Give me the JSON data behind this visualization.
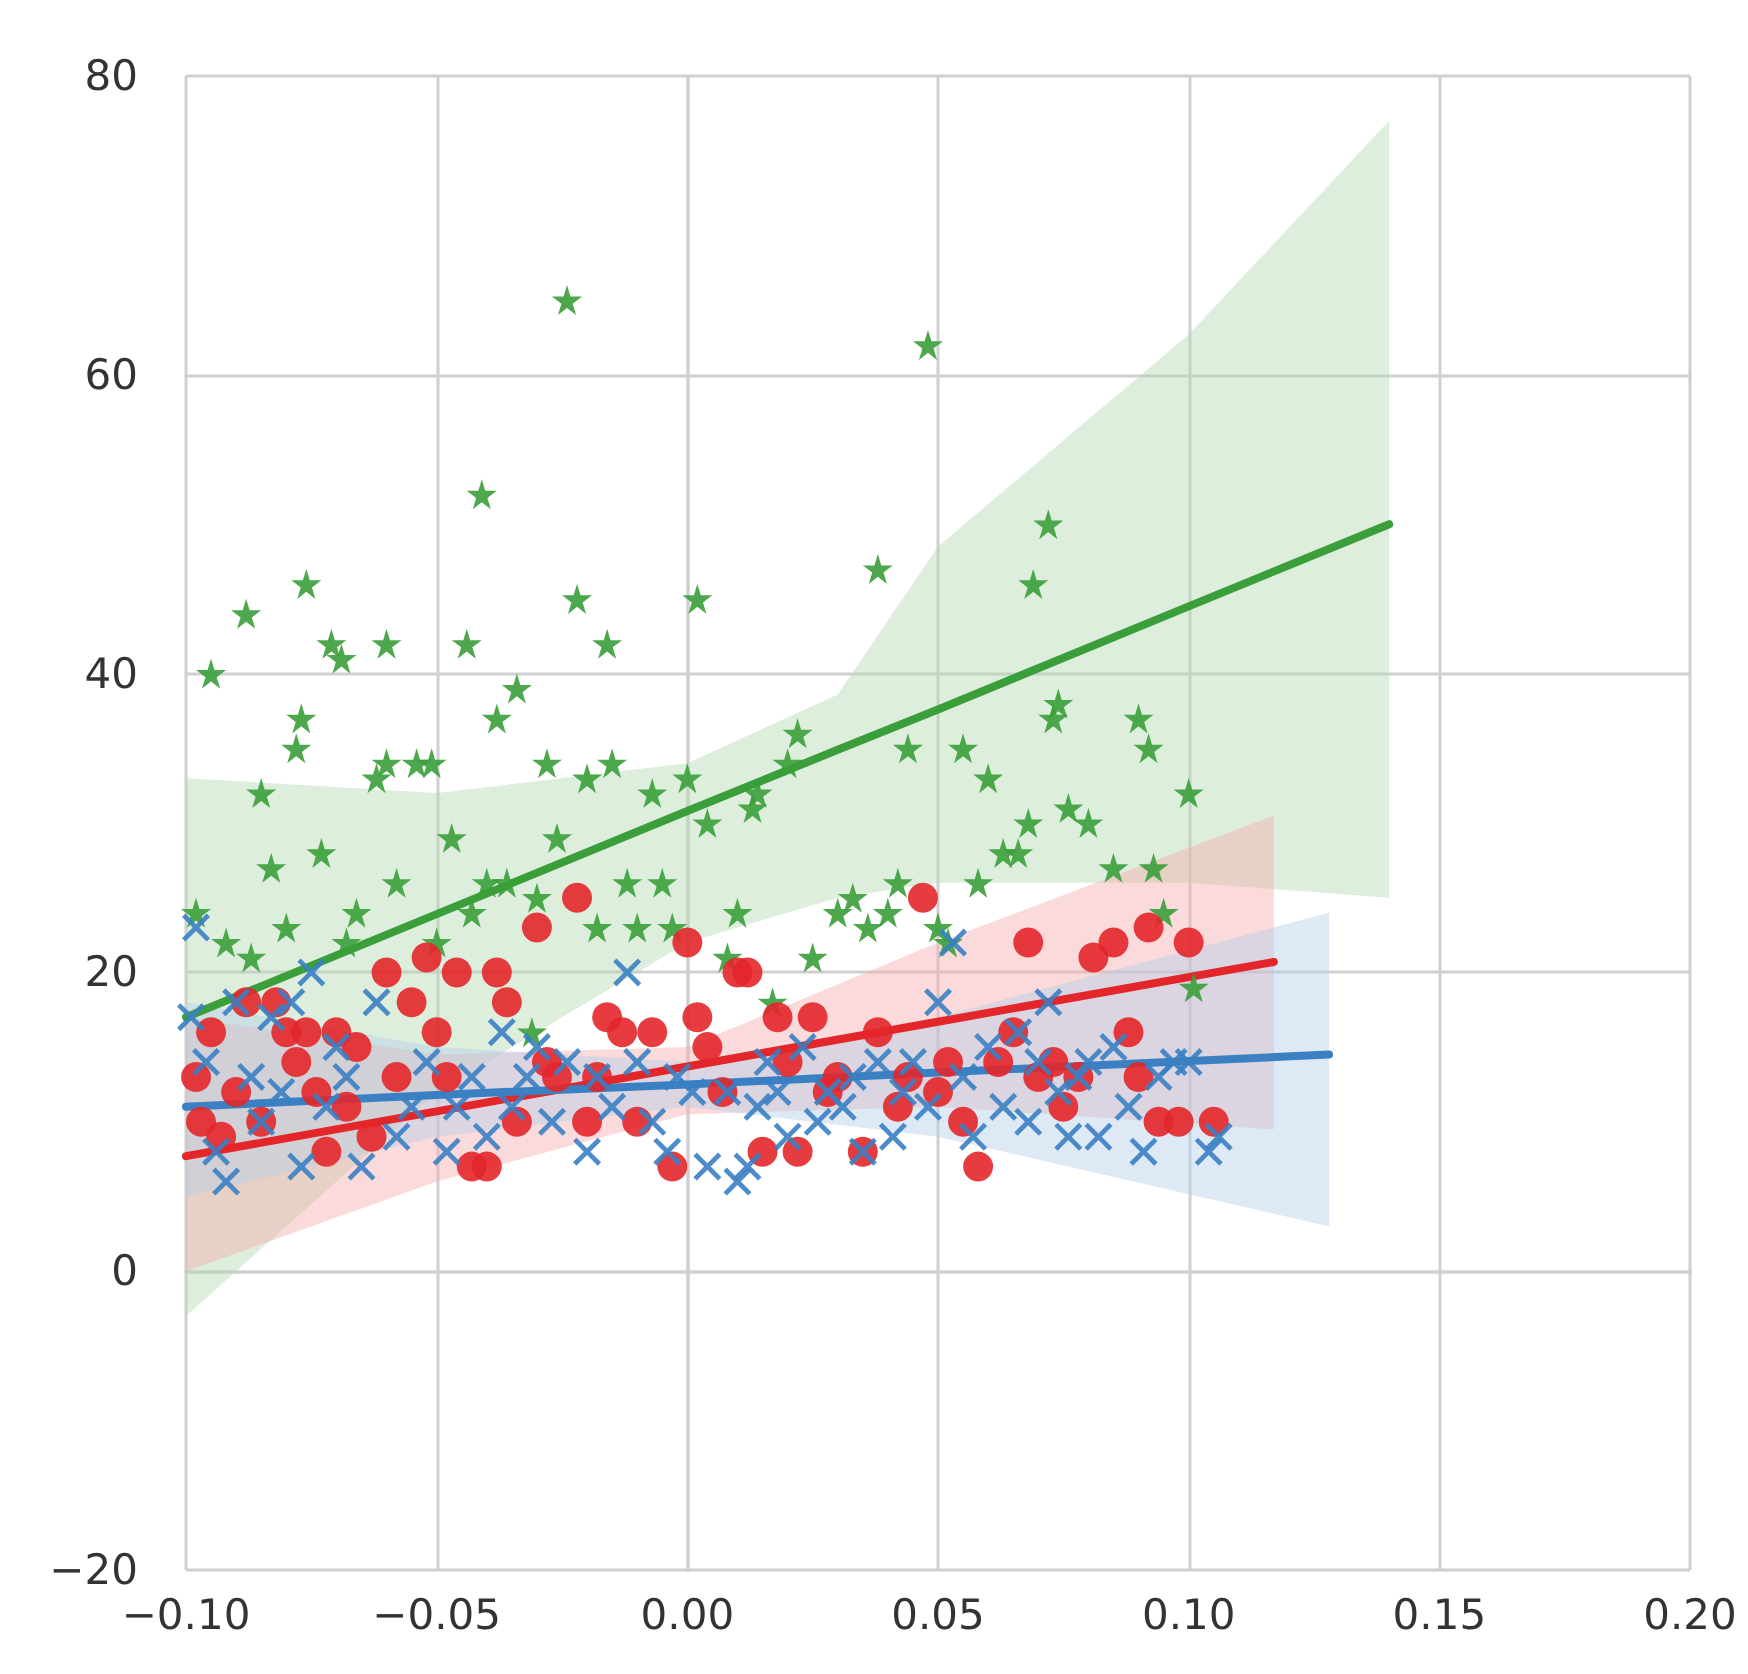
{
  "chart_data": {
    "type": "scatter",
    "xlim": [
      -0.1,
      0.2
    ],
    "ylim": [
      -20,
      80
    ],
    "xticks": [
      {
        "value": -0.1,
        "label": "−0.10"
      },
      {
        "value": -0.05,
        "label": "−0.05"
      },
      {
        "value": 0,
        "label": "0.00"
      },
      {
        "value": 0.05,
        "label": "0.05"
      },
      {
        "value": 0.1,
        "label": "0.10"
      },
      {
        "value": 0.15,
        "label": "0.15"
      },
      {
        "value": 0.2,
        "label": "0.20"
      }
    ],
    "yticks": [
      {
        "value": -20,
        "label": "−20"
      },
      0,
      20,
      40,
      60,
      80
    ],
    "grid": true,
    "series": [
      {
        "color": "#3a9e3a",
        "marker": "star",
        "x": [
          -0.098,
          -0.095,
          -0.092,
          -0.088,
          -0.087,
          -0.085,
          -0.083,
          -0.08,
          -0.078,
          -0.077,
          -0.076,
          -0.073,
          -0.071,
          -0.069,
          -0.068,
          -0.066,
          -0.062,
          -0.06,
          -0.06,
          -0.058,
          -0.054,
          -0.051,
          -0.05,
          -0.047,
          -0.044,
          -0.043,
          -0.041,
          -0.04,
          -0.038,
          -0.036,
          -0.034,
          -0.031,
          -0.03,
          -0.028,
          -0.026,
          -0.024,
          -0.022,
          -0.02,
          -0.018,
          -0.016,
          -0.015,
          -0.012,
          -0.01,
          -0.007,
          -0.005,
          -0.003,
          0,
          0.002,
          0.004,
          0.008,
          0.01,
          0.013,
          0.014,
          0.017,
          0.02,
          0.022,
          0.025,
          0.03,
          0.033,
          0.036,
          0.038,
          0.04,
          0.042,
          0.044,
          0.048,
          0.05,
          0.052,
          0.055,
          0.058,
          0.06,
          0.063,
          0.066,
          0.068,
          0.069,
          0.072,
          0.073,
          0.074,
          0.076,
          0.08,
          0.085,
          0.09,
          0.092,
          0.093,
          0.095,
          0.1,
          0.101
        ],
        "values": [
          24,
          40,
          22,
          44,
          21,
          32,
          27,
          23,
          35,
          37,
          46,
          28,
          42,
          41,
          22,
          24,
          33,
          42,
          34,
          26,
          34,
          34,
          22,
          29,
          42,
          24,
          52,
          26,
          37,
          26,
          39,
          16,
          25,
          34,
          29,
          65,
          45,
          33,
          23,
          42,
          34,
          26,
          23,
          32,
          26,
          23,
          33,
          45,
          30,
          21,
          24,
          31,
          32,
          18,
          34,
          36,
          21,
          24,
          25,
          23,
          47,
          24,
          26,
          35,
          62,
          23,
          22,
          35,
          26,
          33,
          28,
          28,
          30,
          46,
          50,
          37,
          38,
          31,
          30,
          27,
          37,
          35,
          27,
          24,
          32,
          19
        ]
      },
      {
        "color": "#e3262a",
        "marker": "circle",
        "x": [
          -0.098,
          -0.097,
          -0.095,
          -0.093,
          -0.09,
          -0.088,
          -0.085,
          -0.082,
          -0.08,
          -0.078,
          -0.076,
          -0.074,
          -0.072,
          -0.07,
          -0.068,
          -0.066,
          -0.063,
          -0.06,
          -0.058,
          -0.055,
          -0.052,
          -0.05,
          -0.048,
          -0.046,
          -0.043,
          -0.04,
          -0.038,
          -0.036,
          -0.034,
          -0.03,
          -0.028,
          -0.026,
          -0.022,
          -0.02,
          -0.018,
          -0.016,
          -0.013,
          -0.01,
          -0.007,
          -0.003,
          0,
          0.002,
          0.004,
          0.007,
          0.01,
          0.012,
          0.015,
          0.018,
          0.02,
          0.022,
          0.025,
          0.028,
          0.03,
          0.035,
          0.038,
          0.042,
          0.044,
          0.047,
          0.05,
          0.052,
          0.055,
          0.058,
          0.062,
          0.065,
          0.068,
          0.07,
          0.073,
          0.075,
          0.078,
          0.081,
          0.085,
          0.088,
          0.09,
          0.092,
          0.094,
          0.098,
          0.1,
          0.105
        ],
        "values": [
          13,
          10,
          16,
          9,
          12,
          18,
          10,
          18,
          16,
          14,
          16,
          12,
          8,
          16,
          11,
          15,
          9,
          20,
          13,
          18,
          21,
          16,
          13,
          20,
          7,
          7,
          20,
          18,
          10,
          23,
          14,
          13,
          25,
          10,
          13,
          17,
          16,
          10,
          16,
          7,
          22,
          17,
          15,
          12,
          20,
          20,
          8,
          17,
          14,
          8,
          17,
          12,
          13,
          8,
          16,
          11,
          13,
          25,
          12,
          14,
          10,
          7,
          14,
          16,
          22,
          13,
          14,
          11,
          13,
          21,
          22,
          16,
          13,
          23,
          10,
          10,
          22,
          10
        ]
      },
      {
        "color": "#3a80c3",
        "marker": "cross",
        "x": [
          -0.099,
          -0.098,
          -0.096,
          -0.094,
          -0.092,
          -0.09,
          -0.087,
          -0.085,
          -0.083,
          -0.081,
          -0.079,
          -0.077,
          -0.075,
          -0.072,
          -0.07,
          -0.068,
          -0.065,
          -0.062,
          -0.058,
          -0.055,
          -0.052,
          -0.048,
          -0.046,
          -0.043,
          -0.04,
          -0.037,
          -0.035,
          -0.032,
          -0.03,
          -0.027,
          -0.024,
          -0.02,
          -0.018,
          -0.015,
          -0.012,
          -0.01,
          -0.007,
          -0.004,
          -0.002,
          0.001,
          0.004,
          0.008,
          0.01,
          0.012,
          0.014,
          0.016,
          0.018,
          0.02,
          0.023,
          0.026,
          0.028,
          0.031,
          0.033,
          0.035,
          0.038,
          0.041,
          0.043,
          0.045,
          0.048,
          0.05,
          0.053,
          0.055,
          0.057,
          0.06,
          0.063,
          0.066,
          0.068,
          0.07,
          0.072,
          0.074,
          0.076,
          0.078,
          0.08,
          0.082,
          0.085,
          0.088,
          0.091,
          0.094,
          0.097,
          0.1,
          0.104,
          0.106
        ],
        "values": [
          17,
          23,
          14,
          8,
          6,
          18,
          13,
          10,
          17,
          12,
          18,
          7,
          20,
          11,
          15,
          13,
          7,
          18,
          9,
          11,
          14,
          8,
          11,
          13,
          9,
          16,
          11,
          13,
          15,
          10,
          14,
          8,
          13,
          11,
          20,
          14,
          10,
          8,
          13,
          12,
          7,
          12,
          6,
          7,
          11,
          14,
          12,
          9,
          15,
          10,
          12,
          11,
          13,
          8,
          14,
          9,
          12,
          14,
          11,
          18,
          22,
          13,
          9,
          15,
          11,
          16,
          10,
          14,
          18,
          12,
          9,
          13,
          14,
          9,
          15,
          11,
          8,
          13,
          14,
          14,
          8,
          9
        ]
      },
      {
        "type": "line",
        "color": "#3a9e3a",
        "x": [
          -0.1,
          -0.05,
          0,
          0.03,
          0.05,
          0.1,
          0.14
        ],
        "values": [
          17,
          23.9,
          30.8,
          34.9,
          37.6,
          44.5,
          50
        ],
        "lower": [
          -3,
          12,
          22,
          25,
          26,
          26,
          25
        ],
        "upper": [
          33,
          32,
          34,
          38.6,
          48.5,
          62.7,
          77
        ]
      },
      {
        "type": "line",
        "color": "#e3262a",
        "x": [
          -0.1,
          -0.05,
          0,
          0.05,
          0.117
        ],
        "values": [
          7.7,
          10.7,
          13.7,
          16.7,
          20.7
        ],
        "lower": [
          0,
          6,
          10.5,
          11,
          9.5
        ],
        "upper": [
          17,
          14.5,
          15,
          22,
          30.5
        ]
      },
      {
        "type": "line",
        "color": "#3a80c3",
        "x": [
          -0.1,
          -0.05,
          0,
          0.05,
          0.128
        ],
        "values": [
          11,
          11.8,
          12.5,
          13.3,
          14.5
        ],
        "lower": [
          5,
          9,
          11,
          9,
          3
        ],
        "upper": [
          18,
          15,
          14,
          17,
          24
        ]
      }
    ]
  }
}
